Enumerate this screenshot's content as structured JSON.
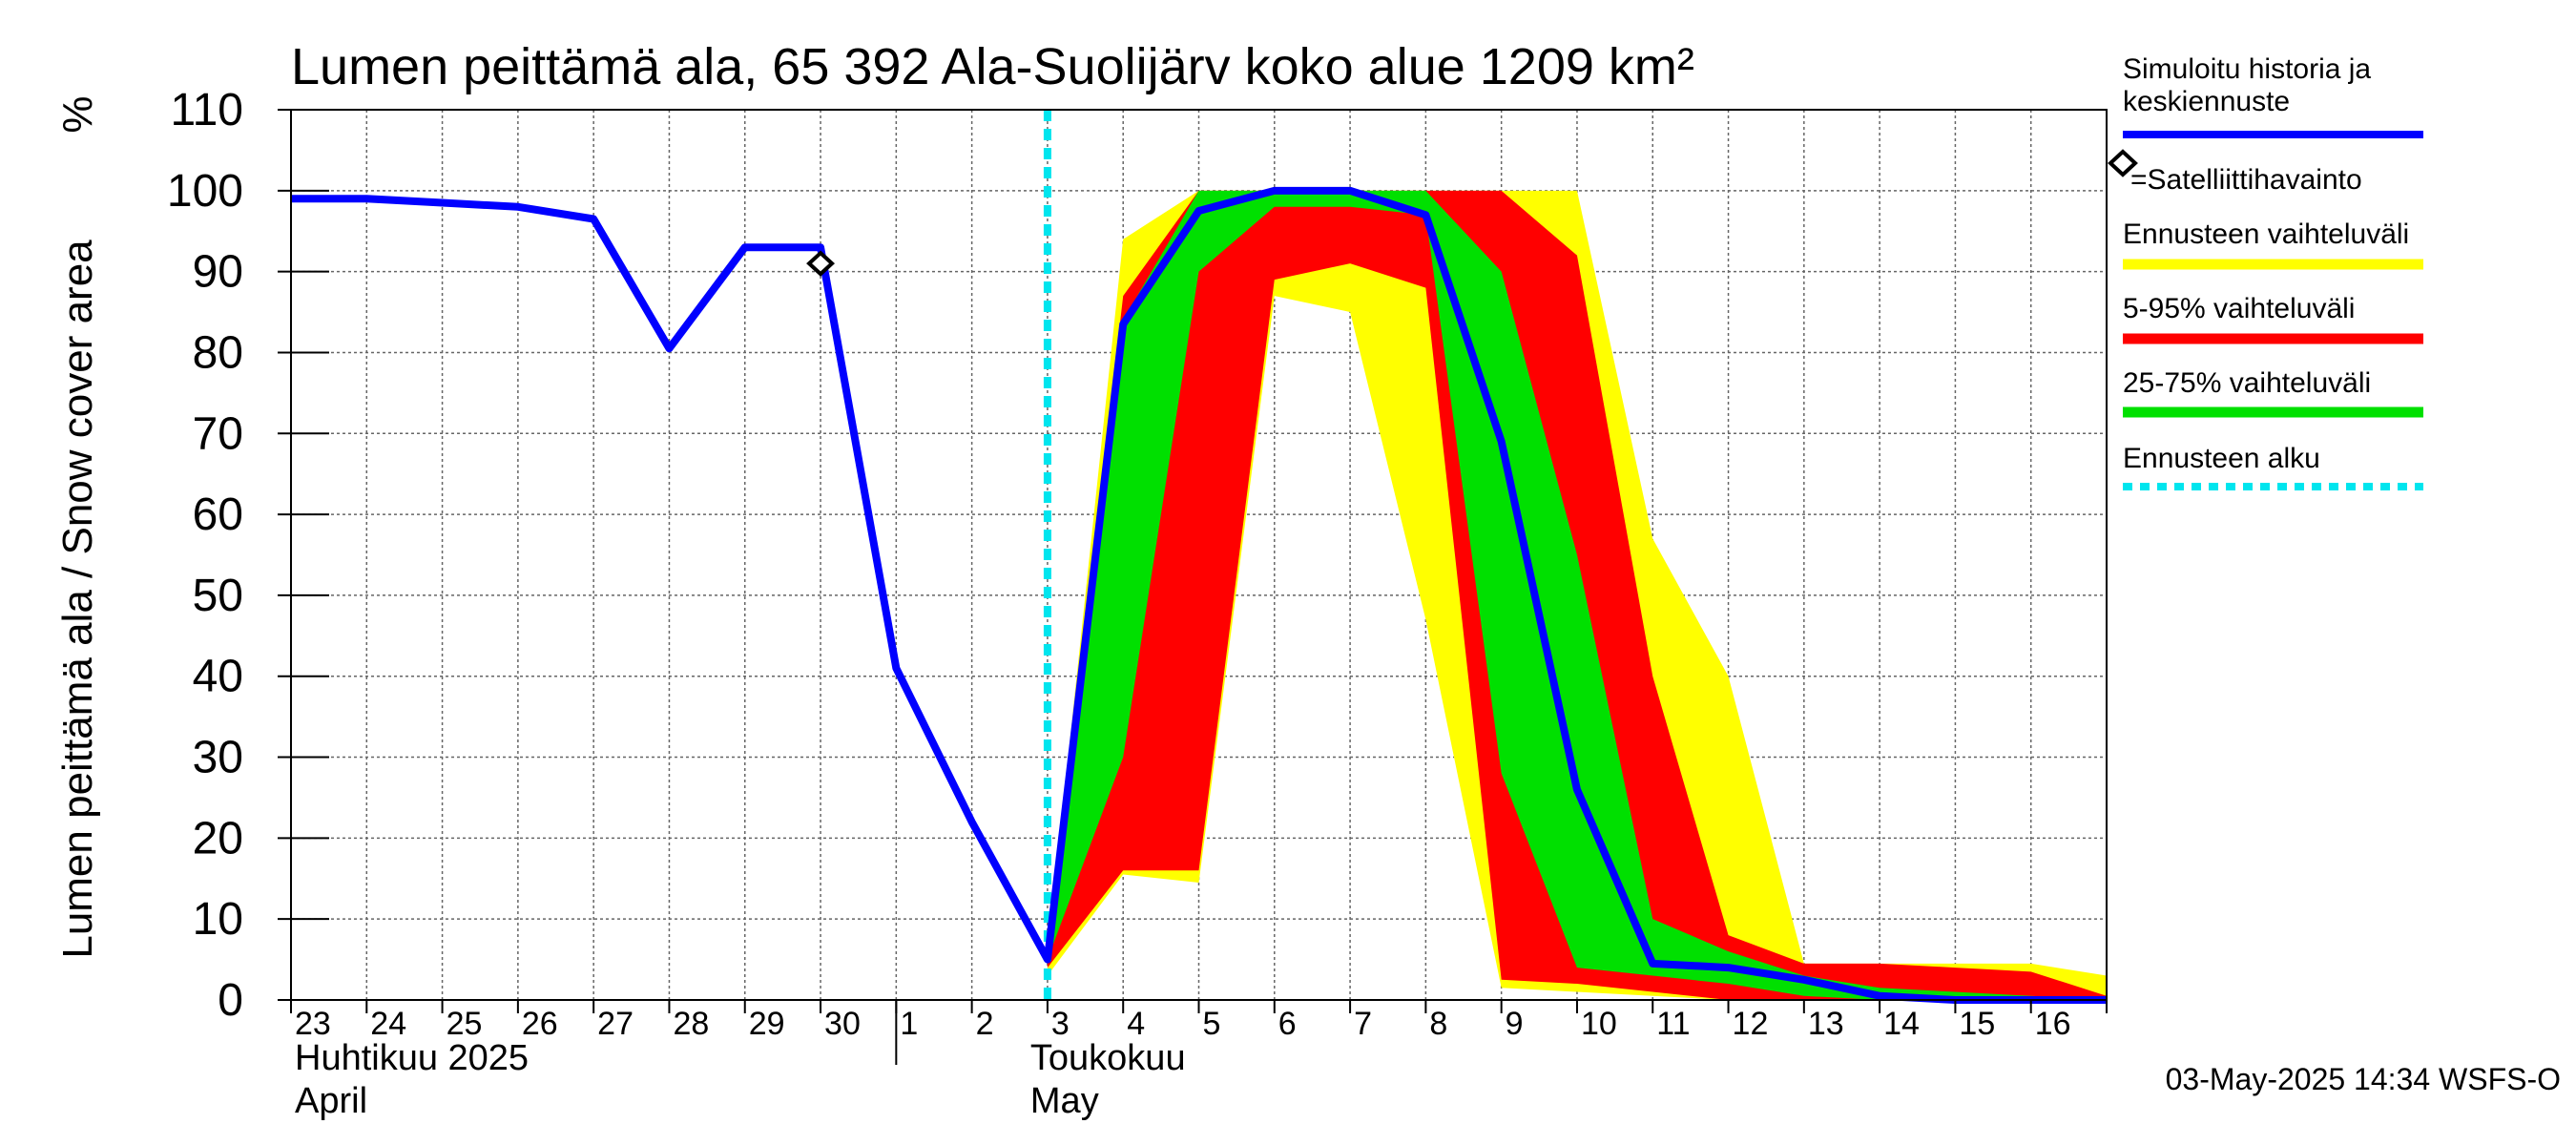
{
  "chart_data": {
    "type": "area",
    "title": "Lumen peittämä ala, 65 392 Ala-Suolijärv koko alue 1209 km²",
    "ylabel": "Lumen peittämä ala / Snow cover area",
    "yunit": "%",
    "ylim": [
      0,
      110
    ],
    "yticks": [
      "0",
      "10",
      "20",
      "30",
      "40",
      "50",
      "60",
      "70",
      "80",
      "90",
      "100",
      "110"
    ],
    "grid": true,
    "x_dates": [
      "2025-04-23",
      "2025-04-24",
      "2025-04-25",
      "2025-04-26",
      "2025-04-27",
      "2025-04-28",
      "2025-04-29",
      "2025-04-30",
      "2025-05-01",
      "2025-05-02",
      "2025-05-03",
      "2025-05-04",
      "2025-05-05",
      "2025-05-06",
      "2025-05-07",
      "2025-05-08",
      "2025-05-09",
      "2025-05-10",
      "2025-05-11",
      "2025-05-12",
      "2025-05-13",
      "2025-05-14",
      "2025-05-15",
      "2025-05-16"
    ],
    "xticks": [
      "23",
      "24",
      "25",
      "26",
      "27",
      "28",
      "29",
      "30",
      "1",
      "2",
      "3",
      "4",
      "5",
      "6",
      "7",
      "8",
      "9",
      "10",
      "11",
      "12",
      "13",
      "14",
      "15",
      "16"
    ],
    "months": [
      {
        "line1": "Huhtikuu  2025",
        "line2": "April"
      },
      {
        "line1": "Toukokuu",
        "line2": "May"
      }
    ],
    "forecast_start": "2025-05-03",
    "satellite_observation": {
      "x": "2025-04-30",
      "y": 91
    },
    "series": [
      {
        "name": "Ennusteen vaihteluväli",
        "color": "#ffff00",
        "x": [
          "2025-05-03",
          "2025-05-04",
          "2025-05-05",
          "2025-05-06",
          "2025-05-07",
          "2025-05-08",
          "2025-05-09",
          "2025-05-10",
          "2025-05-11",
          "2025-05-12",
          "2025-05-13",
          "2025-05-14",
          "2025-05-15",
          "2025-05-16",
          "2025-05-17"
        ],
        "upper": [
          6,
          94,
          100,
          100,
          100,
          100,
          100,
          100,
          57,
          40,
          4.5,
          4.5,
          4.5,
          4.5,
          3
        ],
        "lower": [
          3,
          15.5,
          14.5,
          87,
          85,
          47,
          1.5,
          1,
          0.5,
          0,
          0,
          0,
          0,
          0,
          0
        ]
      },
      {
        "name": "5-95% vaihteluväli",
        "color": "#ff0000",
        "x": [
          "2025-05-03",
          "2025-05-04",
          "2025-05-05",
          "2025-05-06",
          "2025-05-07",
          "2025-05-08",
          "2025-05-09",
          "2025-05-10",
          "2025-05-11",
          "2025-05-12",
          "2025-05-13",
          "2025-05-14",
          "2025-05-15",
          "2025-05-16",
          "2025-05-17"
        ],
        "upper": [
          5.5,
          87,
          100,
          100,
          100,
          100,
          100,
          92,
          40,
          8,
          4.5,
          4.5,
          4,
          3.5,
          0.5
        ],
        "lower": [
          4,
          16,
          16,
          89,
          91,
          88,
          2.5,
          2,
          1,
          0,
          0,
          0,
          0,
          0,
          0
        ]
      },
      {
        "name": "25-75% vaihteluväli",
        "color": "#00e000",
        "x": [
          "2025-05-03",
          "2025-05-04",
          "2025-05-05",
          "2025-05-06",
          "2025-05-07",
          "2025-05-08",
          "2025-05-09",
          "2025-05-10",
          "2025-05-11",
          "2025-05-12",
          "2025-05-13",
          "2025-05-14",
          "2025-05-15",
          "2025-05-16",
          "2025-05-17"
        ],
        "upper": [
          5,
          84,
          100,
          100,
          100,
          100,
          90,
          55,
          10,
          6,
          3,
          1.5,
          1,
          0.5,
          0
        ],
        "lower": [
          5,
          30,
          90,
          98,
          98,
          97,
          28,
          4,
          3,
          2,
          0.5,
          0,
          0,
          0,
          0
        ]
      },
      {
        "name": "Simuloitu historia ja keskiennuste",
        "color": "#0000ff",
        "x": [
          "2025-04-23",
          "2025-04-24",
          "2025-04-25",
          "2025-04-26",
          "2025-04-27",
          "2025-04-28",
          "2025-04-29",
          "2025-04-30",
          "2025-05-01",
          "2025-05-02",
          "2025-05-03",
          "2025-05-04",
          "2025-05-05",
          "2025-05-06",
          "2025-05-07",
          "2025-05-08",
          "2025-05-09",
          "2025-05-10",
          "2025-05-11",
          "2025-05-12",
          "2025-05-13",
          "2025-05-14",
          "2025-05-15",
          "2025-05-16",
          "2025-05-17"
        ],
        "values": [
          99,
          99,
          98.5,
          98,
          96.5,
          80.5,
          93,
          93,
          41,
          22,
          5,
          83.5,
          97.5,
          100,
          100,
          97,
          69,
          26,
          4.5,
          4,
          2.5,
          0.5,
          0,
          0,
          0
        ]
      }
    ],
    "legend": [
      {
        "label": "Simuloitu historia ja keskiennuste",
        "lines": [
          "Simuloitu historia ja",
          "keskiennuste"
        ],
        "color": "#0000ff",
        "style": "line"
      },
      {
        "label": "=Satelliittihavainto",
        "lines": [
          "=Satelliittihavainto"
        ],
        "color": "#000000",
        "style": "diamond"
      },
      {
        "label": "Ennusteen vaihteluväli",
        "lines": [
          "Ennusteen vaihteluväli"
        ],
        "color": "#ffff00",
        "style": "band"
      },
      {
        "label": "5-95% vaihteluväli",
        "lines": [
          "5-95% vaihteluväli"
        ],
        "color": "#ff0000",
        "style": "band"
      },
      {
        "label": "25-75% vaihteluväli",
        "lines": [
          "25-75% vaihteluväli"
        ],
        "color": "#00e000",
        "style": "band"
      },
      {
        "label": "Ennusteen alku",
        "lines": [
          "Ennusteen alku"
        ],
        "color": "#00e5ee",
        "style": "dashed"
      }
    ],
    "legend_position": "right",
    "footer": "03-May-2025 14:34 WSFS-O"
  }
}
